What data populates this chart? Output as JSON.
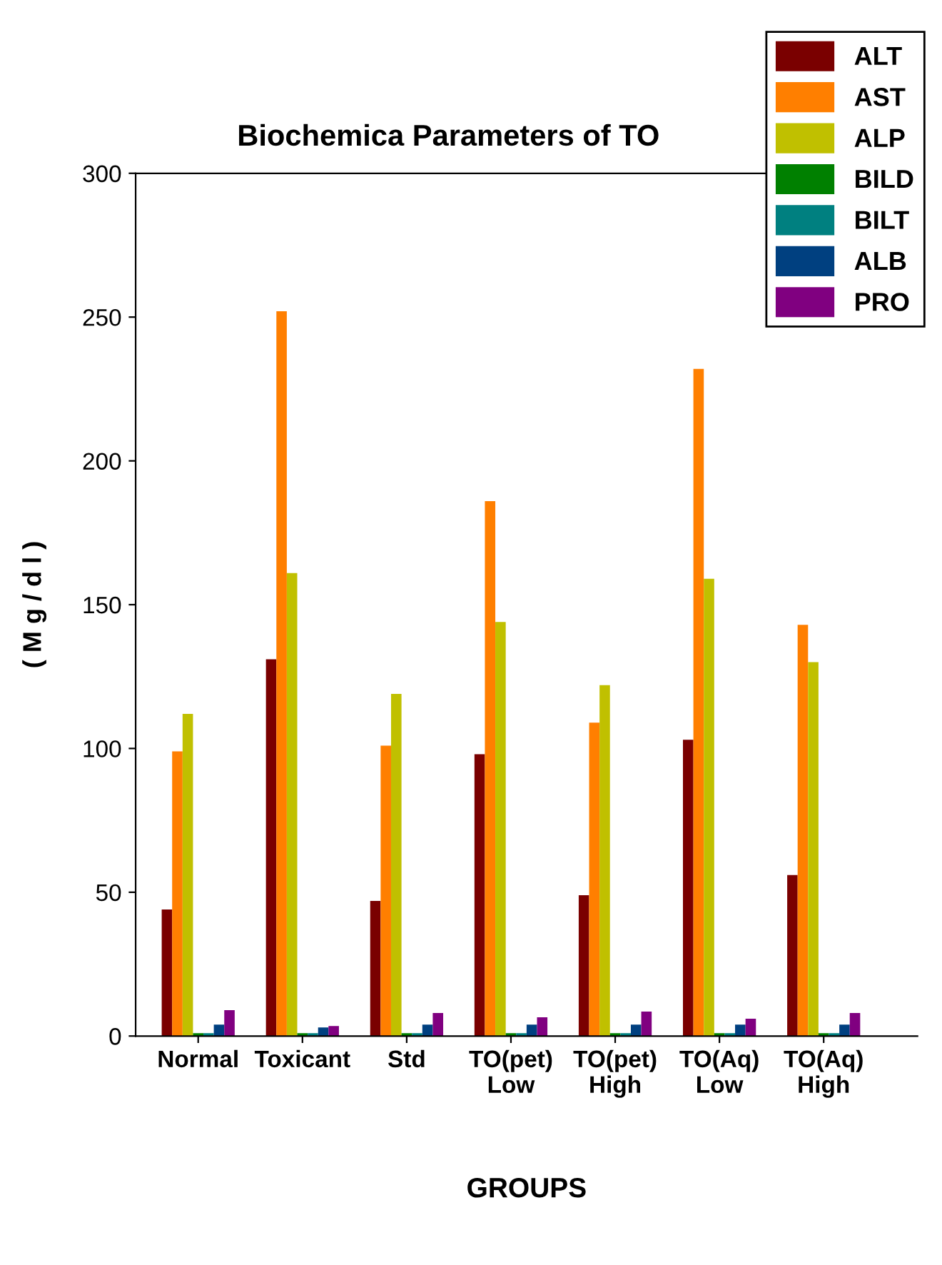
{
  "chart_data": {
    "type": "bar",
    "title": "Biochemica Parameters of TO",
    "xlabel": "GROUPS",
    "ylabel": "( M g / d l )",
    "categories": [
      "Normal",
      "Toxicant",
      "Std",
      "TO(pet)\nLow",
      "TO(pet)\nHigh",
      "TO(Aq)\nLow",
      "TO(Aq)\nHigh"
    ],
    "series": [
      {
        "name": "ALT",
        "color": "#7a0000",
        "values": [
          44,
          131,
          47,
          98,
          49,
          103,
          56
        ]
      },
      {
        "name": "AST",
        "color": "#ff7f00",
        "values": [
          99,
          252,
          101,
          186,
          109,
          232,
          143
        ]
      },
      {
        "name": "ALP",
        "color": "#c0c000",
        "values": [
          112,
          161,
          119,
          144,
          122,
          159,
          130
        ]
      },
      {
        "name": "BILD",
        "color": "#008000",
        "values": [
          1,
          1,
          1,
          1,
          1,
          1,
          1
        ]
      },
      {
        "name": "BILT",
        "color": "#008080",
        "values": [
          1,
          1,
          1,
          1,
          1,
          1,
          1
        ]
      },
      {
        "name": "ALB",
        "color": "#004080",
        "values": [
          4,
          3,
          4,
          4,
          4,
          4,
          4
        ]
      },
      {
        "name": "PRO",
        "color": "#800080",
        "values": [
          9,
          3.5,
          8,
          6.5,
          8.5,
          6,
          8
        ]
      }
    ],
    "ylim": [
      0,
      300
    ],
    "yticks": [
      0,
      50,
      100,
      150,
      200,
      250,
      300
    ],
    "legend": "top right"
  }
}
